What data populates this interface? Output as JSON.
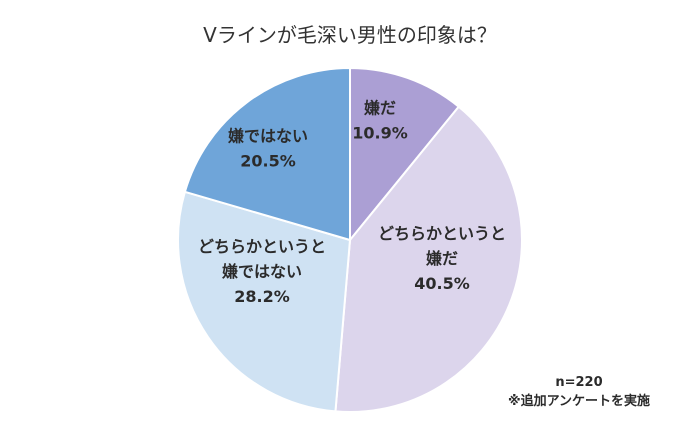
{
  "chart_data": {
    "type": "pie",
    "title": "Vラインが毛深い男性の印象は？",
    "slices": [
      {
        "label_lines": [
          "嫌だ"
        ],
        "value": 10.9,
        "value_label": "10.9%",
        "color": "#ab9fd4"
      },
      {
        "label_lines": [
          "どちらかというと",
          "嫌だ"
        ],
        "value": 40.5,
        "value_label": "40.5%",
        "color": "#dcd5ec"
      },
      {
        "label_lines": [
          "どちらかというと",
          "嫌ではない"
        ],
        "value": 28.2,
        "value_label": "28.2%",
        "color": "#cfe2f3"
      },
      {
        "label_lines": [
          "嫌ではない"
        ],
        "value": 20.5,
        "value_label": "20.5%",
        "color": "#6fa5d9"
      }
    ],
    "start": "12 o'clock",
    "direction": "clockwise",
    "slice_border_color": "#ffffff",
    "legend": "none",
    "notes": [
      "n=220",
      "※追加アンケートを実施"
    ]
  }
}
